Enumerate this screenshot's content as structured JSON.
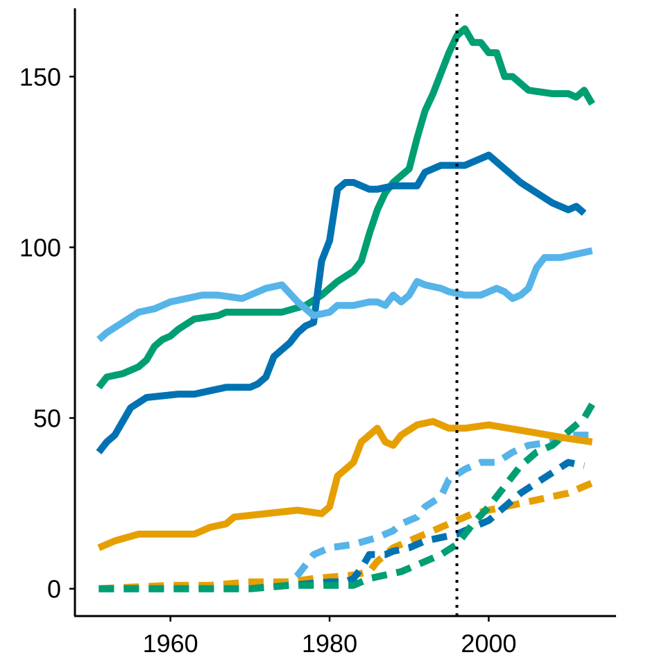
{
  "chart_data": {
    "type": "line",
    "title": "",
    "xlabel": "",
    "ylabel": "",
    "xlim": [
      1948,
      2016
    ],
    "ylim": [
      -8,
      170
    ],
    "x_ticks": [
      1960,
      1980,
      2000
    ],
    "y_ticks": [
      0,
      50,
      100,
      150
    ],
    "x_tick_labels": [
      "1960",
      "1980",
      "2000"
    ],
    "y_tick_labels": [
      "0",
      "50",
      "100",
      "150"
    ],
    "grid": false,
    "legend": "none",
    "reference_line": {
      "axis": "x",
      "value": 1996,
      "style": "dotted",
      "color": "#000000"
    },
    "series": [
      {
        "name": "green solid",
        "color": "#009E73",
        "style": "solid",
        "points": [
          [
            1951,
            59
          ],
          [
            1952,
            62
          ],
          [
            1954,
            63
          ],
          [
            1956,
            65
          ],
          [
            1957,
            67
          ],
          [
            1958,
            71
          ],
          [
            1959,
            73
          ],
          [
            1960,
            74
          ],
          [
            1961,
            76
          ],
          [
            1963,
            79
          ],
          [
            1966,
            80
          ],
          [
            1967,
            81
          ],
          [
            1970,
            81
          ],
          [
            1974,
            81
          ],
          [
            1977,
            83
          ],
          [
            1979,
            86
          ],
          [
            1981,
            90
          ],
          [
            1983,
            93
          ],
          [
            1984,
            96
          ],
          [
            1985,
            104
          ],
          [
            1986,
            111
          ],
          [
            1987,
            116
          ],
          [
            1988,
            119
          ],
          [
            1990,
            123
          ],
          [
            1991,
            132
          ],
          [
            1992,
            140
          ],
          [
            1993,
            145
          ],
          [
            1994,
            151
          ],
          [
            1995,
            157
          ],
          [
            1996,
            162
          ],
          [
            1997,
            164
          ],
          [
            1998,
            160
          ],
          [
            1999,
            160
          ],
          [
            2000,
            157
          ],
          [
            2001,
            157
          ],
          [
            2002,
            150
          ],
          [
            2003,
            150
          ],
          [
            2005,
            146
          ],
          [
            2008,
            145
          ],
          [
            2010,
            145
          ],
          [
            2011,
            144
          ],
          [
            2012,
            146
          ],
          [
            2013,
            142
          ]
        ]
      },
      {
        "name": "dark blue solid",
        "color": "#0072B2",
        "style": "solid",
        "points": [
          [
            1951,
            40
          ],
          [
            1952,
            43
          ],
          [
            1953,
            45
          ],
          [
            1955,
            53
          ],
          [
            1957,
            56
          ],
          [
            1961,
            57
          ],
          [
            1963,
            57
          ],
          [
            1965,
            58
          ],
          [
            1967,
            59
          ],
          [
            1970,
            59
          ],
          [
            1971,
            60
          ],
          [
            1972,
            62
          ],
          [
            1973,
            68
          ],
          [
            1974,
            70
          ],
          [
            1975,
            72
          ],
          [
            1976,
            75
          ],
          [
            1977,
            77
          ],
          [
            1978,
            78
          ],
          [
            1979,
            96
          ],
          [
            1980,
            102
          ],
          [
            1981,
            117
          ],
          [
            1982,
            119
          ],
          [
            1983,
            119
          ],
          [
            1985,
            117
          ],
          [
            1986,
            117
          ],
          [
            1988,
            118
          ],
          [
            1991,
            118
          ],
          [
            1992,
            122
          ],
          [
            1994,
            124
          ],
          [
            1997,
            124
          ],
          [
            2000,
            127
          ],
          [
            2002,
            123
          ],
          [
            2004,
            119
          ],
          [
            2006,
            116
          ],
          [
            2008,
            113
          ],
          [
            2010,
            111
          ],
          [
            2011,
            112
          ],
          [
            2012,
            110
          ]
        ]
      },
      {
        "name": "light blue solid",
        "color": "#56B4E9",
        "style": "solid",
        "points": [
          [
            1951,
            73
          ],
          [
            1952,
            75
          ],
          [
            1954,
            78
          ],
          [
            1956,
            81
          ],
          [
            1958,
            82
          ],
          [
            1960,
            84
          ],
          [
            1962,
            85
          ],
          [
            1964,
            86
          ],
          [
            1966,
            86
          ],
          [
            1969,
            85
          ],
          [
            1972,
            88
          ],
          [
            1974,
            89
          ],
          [
            1976,
            84
          ],
          [
            1978,
            80
          ],
          [
            1980,
            81
          ],
          [
            1981,
            83
          ],
          [
            1983,
            83
          ],
          [
            1985,
            84
          ],
          [
            1986,
            84
          ],
          [
            1987,
            83
          ],
          [
            1988,
            86
          ],
          [
            1989,
            84
          ],
          [
            1990,
            86
          ],
          [
            1991,
            90
          ],
          [
            1992,
            89
          ],
          [
            1994,
            88
          ],
          [
            1995,
            87
          ],
          [
            1997,
            86
          ],
          [
            1999,
            86
          ],
          [
            2000,
            87
          ],
          [
            2001,
            88
          ],
          [
            2002,
            87
          ],
          [
            2003,
            85
          ],
          [
            2004,
            86
          ],
          [
            2005,
            88
          ],
          [
            2006,
            94
          ],
          [
            2007,
            97
          ],
          [
            2009,
            97
          ],
          [
            2013,
            99
          ]
        ]
      },
      {
        "name": "orange solid",
        "color": "#E69F00",
        "style": "solid",
        "points": [
          [
            1951,
            12
          ],
          [
            1953,
            14
          ],
          [
            1956,
            16
          ],
          [
            1960,
            16
          ],
          [
            1963,
            16
          ],
          [
            1965,
            18
          ],
          [
            1967,
            19
          ],
          [
            1968,
            21
          ],
          [
            1972,
            22
          ],
          [
            1976,
            23
          ],
          [
            1979,
            22
          ],
          [
            1980,
            24
          ],
          [
            1981,
            33
          ],
          [
            1983,
            37
          ],
          [
            1984,
            43
          ],
          [
            1985,
            45
          ],
          [
            1986,
            47
          ],
          [
            1987,
            43
          ],
          [
            1988,
            42
          ],
          [
            1989,
            45
          ],
          [
            1991,
            48
          ],
          [
            1993,
            49
          ],
          [
            1995,
            47
          ],
          [
            1997,
            47
          ],
          [
            2000,
            48
          ],
          [
            2005,
            46
          ],
          [
            2010,
            44
          ],
          [
            2013,
            43
          ]
        ]
      },
      {
        "name": "light blue dashed",
        "color": "#56B4E9",
        "style": "dashed",
        "points": [
          [
            1951,
            0
          ],
          [
            1960,
            0
          ],
          [
            1970,
            1
          ],
          [
            1975,
            2
          ],
          [
            1976,
            4
          ],
          [
            1978,
            10
          ],
          [
            1980,
            12
          ],
          [
            1983,
            13
          ],
          [
            1986,
            15
          ],
          [
            1988,
            17
          ],
          [
            1989,
            19
          ],
          [
            1991,
            21
          ],
          [
            1992,
            24
          ],
          [
            1994,
            27
          ],
          [
            1995,
            32
          ],
          [
            1997,
            35
          ],
          [
            1999,
            37
          ],
          [
            2001,
            37
          ],
          [
            2003,
            40
          ],
          [
            2005,
            42
          ],
          [
            2008,
            43
          ],
          [
            2010,
            45
          ],
          [
            2013,
            45
          ]
        ]
      },
      {
        "name": "orange dashed",
        "color": "#E69F00",
        "style": "dashed",
        "points": [
          [
            1951,
            0
          ],
          [
            1960,
            1
          ],
          [
            1965,
            1
          ],
          [
            1970,
            2
          ],
          [
            1975,
            2
          ],
          [
            1978,
            3
          ],
          [
            1983,
            4
          ],
          [
            1985,
            5
          ],
          [
            1986,
            8
          ],
          [
            1988,
            12
          ],
          [
            1990,
            14
          ],
          [
            1992,
            16
          ],
          [
            1994,
            18
          ],
          [
            1996,
            20
          ],
          [
            1998,
            22
          ],
          [
            2000,
            23
          ],
          [
            2002,
            24
          ],
          [
            2004,
            25
          ],
          [
            2006,
            26
          ],
          [
            2010,
            28
          ],
          [
            2013,
            31
          ]
        ]
      },
      {
        "name": "dark blue dashed",
        "color": "#0072B2",
        "style": "dashed",
        "points": [
          [
            1951,
            0
          ],
          [
            1960,
            0
          ],
          [
            1970,
            0
          ],
          [
            1975,
            1
          ],
          [
            1980,
            2
          ],
          [
            1982,
            2
          ],
          [
            1983,
            3
          ],
          [
            1984,
            6
          ],
          [
            1985,
            10
          ],
          [
            1987,
            10
          ],
          [
            1988,
            11
          ],
          [
            1990,
            12
          ],
          [
            1992,
            14
          ],
          [
            1994,
            15
          ],
          [
            1996,
            16
          ],
          [
            1998,
            18
          ],
          [
            2000,
            20
          ],
          [
            2002,
            24
          ],
          [
            2004,
            28
          ],
          [
            2006,
            31
          ],
          [
            2008,
            34
          ],
          [
            2010,
            37
          ],
          [
            2012,
            36
          ]
        ]
      },
      {
        "name": "green dashed",
        "color": "#009E73",
        "style": "dashed",
        "points": [
          [
            1951,
            0
          ],
          [
            1970,
            0
          ],
          [
            1975,
            1
          ],
          [
            1980,
            1
          ],
          [
            1983,
            1
          ],
          [
            1984,
            2
          ],
          [
            1985,
            3
          ],
          [
            1987,
            4
          ],
          [
            1989,
            5
          ],
          [
            1992,
            8
          ],
          [
            1994,
            10
          ],
          [
            1996,
            13
          ],
          [
            1997,
            16
          ],
          [
            1998,
            19
          ],
          [
            2000,
            24
          ],
          [
            2002,
            30
          ],
          [
            2004,
            36
          ],
          [
            2006,
            40
          ],
          [
            2008,
            42
          ],
          [
            2010,
            46
          ],
          [
            2012,
            50
          ],
          [
            2013,
            54
          ]
        ]
      }
    ]
  }
}
